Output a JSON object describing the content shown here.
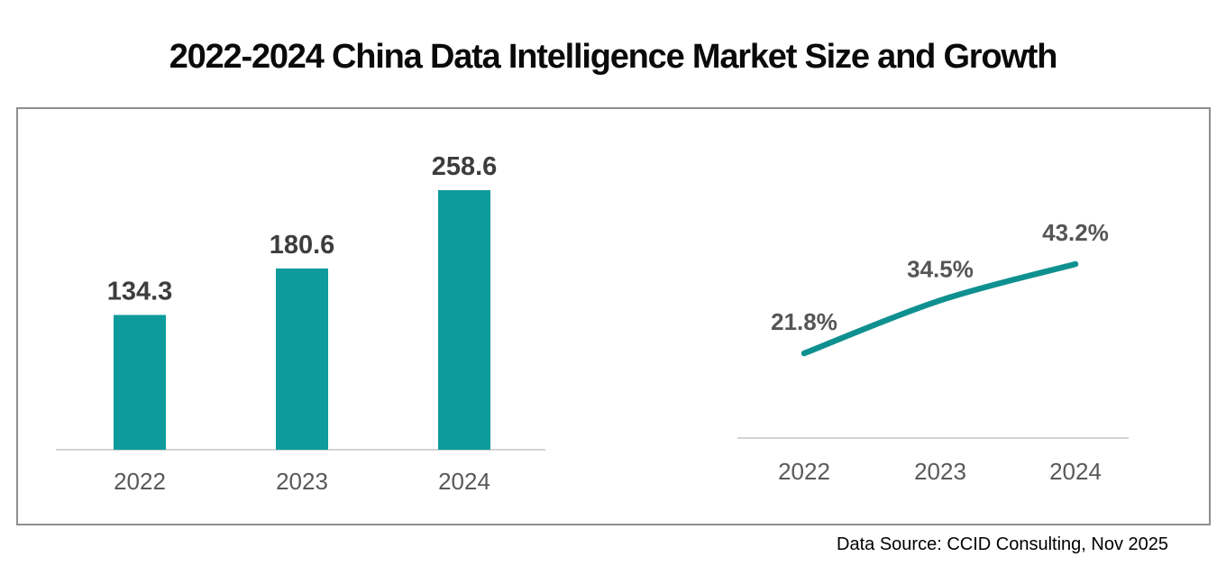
{
  "page": {
    "title": "2022-2024 China Data Intelligence Market Size and Growth",
    "source_note": "Data Source: CCID Consulting, Nov 2025"
  },
  "colors": {
    "bar_fill": "#0d9b9c",
    "line_stroke": "#0f9090",
    "axis_line": "#c6c6c6",
    "value_label": "#3d3d3d",
    "pct_label": "#555555",
    "year_label": "#595959",
    "box_border": "#8e8e8e",
    "title_text": "#0a0a0a"
  },
  "chart_data": [
    {
      "type": "bar",
      "name": "market-size-bar-chart",
      "title": "",
      "categories": [
        "2022",
        "2023",
        "2024"
      ],
      "values": [
        134.3,
        180.6,
        258.6
      ],
      "data_labels": [
        "134.3",
        "180.6",
        "258.6"
      ],
      "xlabel": "",
      "ylabel": "",
      "ylim": [
        0,
        290
      ],
      "grid": false,
      "legend": false
    },
    {
      "type": "line",
      "name": "growth-rate-line-chart",
      "title": "",
      "categories": [
        "2022",
        "2023",
        "2024"
      ],
      "values": [
        21.8,
        34.5,
        43.2
      ],
      "data_labels": [
        "21.8%",
        "34.5%",
        "43.2%"
      ],
      "xlabel": "",
      "ylabel": "",
      "ylim": [
        0,
        55
      ],
      "grid": false,
      "legend": false
    }
  ]
}
